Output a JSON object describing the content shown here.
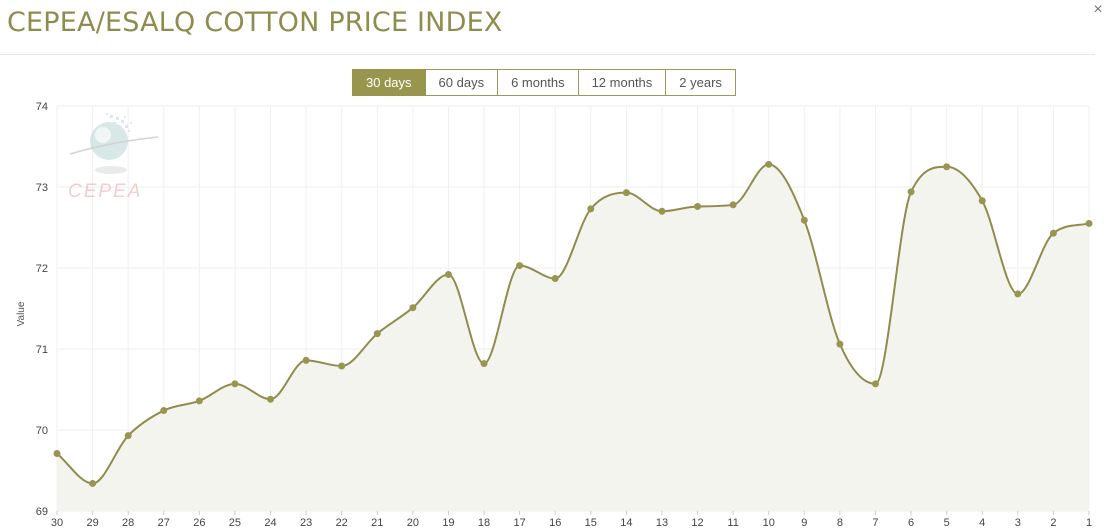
{
  "header": {
    "title": "CEPEA/ESALQ COTTON PRICE INDEX",
    "close_glyph": "×"
  },
  "tabs": [
    {
      "label": "30 days",
      "active": true
    },
    {
      "label": "60 days",
      "active": false
    },
    {
      "label": "6 months",
      "active": false
    },
    {
      "label": "12 months",
      "active": false
    },
    {
      "label": "2 years",
      "active": false
    }
  ],
  "watermark": {
    "text": "CEPEA"
  },
  "colors": {
    "accent": "#98954f",
    "line": "#8f8c4e",
    "fill": "#f4f4ef"
  },
  "chart_data": {
    "type": "area",
    "ylabel": "Value",
    "xlabel": "",
    "ylim": [
      69,
      74
    ],
    "yticks": [
      69,
      70,
      71,
      72,
      73,
      74
    ],
    "grid": true,
    "categories": [
      "30",
      "29",
      "28",
      "27",
      "26",
      "25",
      "24",
      "23",
      "22",
      "21",
      "20",
      "19",
      "18",
      "17",
      "16",
      "15",
      "14",
      "13",
      "12",
      "11",
      "10",
      "9",
      "8",
      "7",
      "6",
      "5",
      "4",
      "3",
      "2",
      "1"
    ],
    "series": [
      {
        "values": [
          69.71,
          69.34,
          69.93,
          70.24,
          70.36,
          70.57,
          70.38,
          70.86,
          70.79,
          71.19,
          71.51,
          71.92,
          70.82,
          72.03,
          71.87,
          72.73,
          72.93,
          72.7,
          72.76,
          72.78,
          73.28,
          72.59,
          71.06,
          70.57,
          72.94,
          73.25,
          72.83,
          71.68,
          72.43,
          72.55
        ]
      }
    ]
  }
}
